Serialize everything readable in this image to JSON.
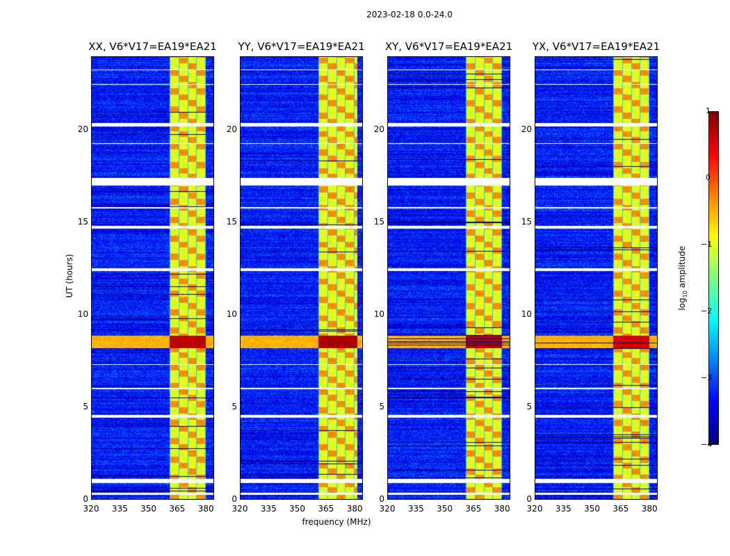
{
  "chart_data": {
    "type": "heatmap",
    "title": "2023-02-18 0.0-24.0",
    "xlabel": "frequency (MHz)",
    "ylabel": "UT (hours)",
    "xlim": [
      320,
      384.3
    ],
    "ylim": [
      0,
      24
    ],
    "xticks": [
      "320",
      "335",
      "350",
      "365",
      "380"
    ],
    "xtick_values": [
      320,
      335,
      350,
      365,
      380
    ],
    "yticks": [
      "0",
      "5",
      "10",
      "15",
      "20"
    ],
    "ytick_values": [
      0,
      5,
      10,
      15,
      20
    ],
    "panels": [
      {
        "title": "XX, V6*V17=EA19*EA21",
        "band": [
          361,
          380
        ],
        "rfi_level": 0.8
      },
      {
        "title": "YY, V6*V17=EA19*EA21",
        "band": [
          361,
          381.5
        ],
        "rfi_level": 0.9
      },
      {
        "title": "XY, V6*V17=EA19*EA21",
        "band": [
          361,
          380
        ],
        "rfi_level": 0.85
      },
      {
        "title": "YX, V6*V17=EA19*EA21",
        "band": [
          361,
          380
        ],
        "rfi_level": 0.7
      }
    ],
    "rfi_event_hours": [
      8.2,
      8.9
    ],
    "flagged_hours": [
      [
        20.25,
        20.45
      ],
      [
        17.05,
        17.45
      ],
      [
        14.7,
        14.85
      ],
      [
        12.4,
        12.55
      ],
      [
        4.45,
        4.6
      ],
      [
        0.9,
        1.1
      ],
      [
        0.25,
        0.35
      ],
      [
        23.3,
        23.35
      ],
      [
        22.5,
        22.55
      ],
      [
        15.8,
        15.85
      ],
      [
        19.3,
        19.35
      ],
      [
        6.0,
        6.05
      ],
      [
        7.3,
        7.35
      ]
    ],
    "colorbar": {
      "label": "log10 amplitude",
      "label_base": "log",
      "label_sub": "10",
      "label_rest": " amplitude",
      "range": [
        -4,
        1
      ],
      "ticks": [
        "1",
        "0",
        "−1",
        "−2",
        "−3",
        "−4"
      ],
      "tick_values": [
        1,
        0,
        -1,
        -2,
        -3,
        -4
      ],
      "colormap": "jet"
    }
  }
}
